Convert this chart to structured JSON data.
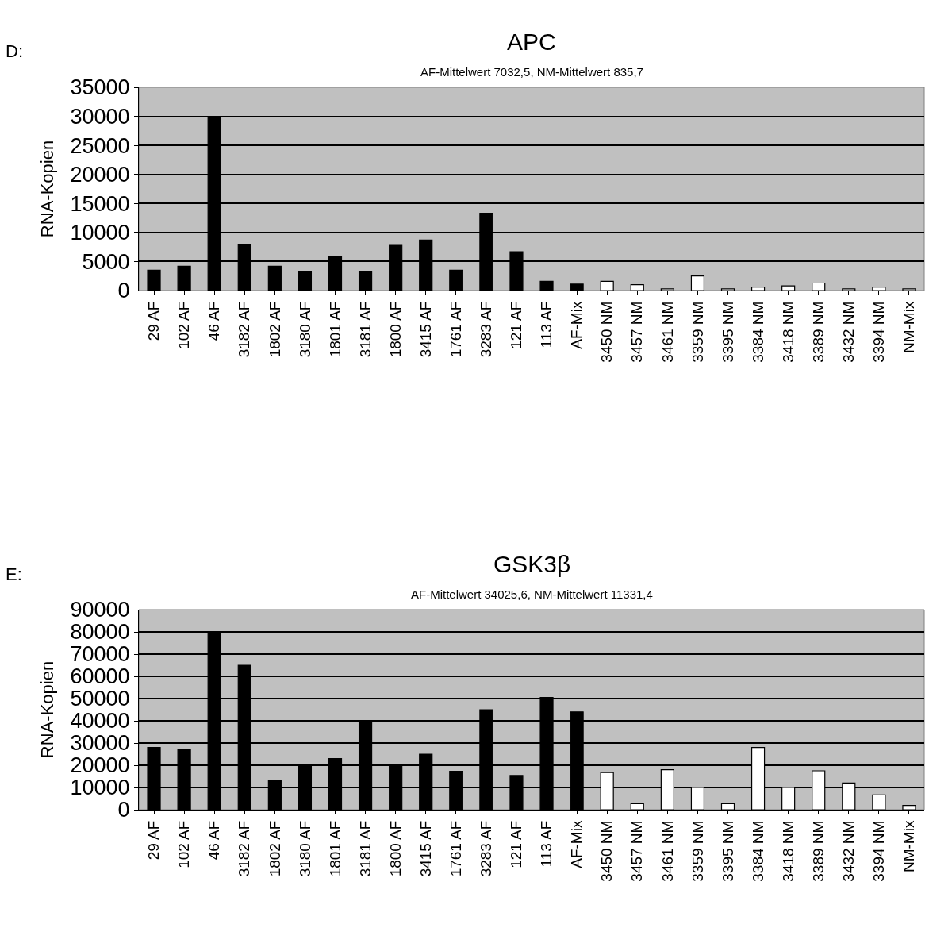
{
  "chart_data": [
    {
      "type": "bar",
      "title": "APC",
      "subtitle": "AF-Mittelwert 7032,5, NM-Mittelwert 835,7",
      "ylabel": "RNA-Kopien",
      "annotations": [
        "D:"
      ],
      "categories": [
        "29 AF",
        "102 AF",
        "46 AF",
        "3182 AF",
        "1802 AF",
        "3180 AF",
        "1801 AF",
        "3181 AF",
        "1800 AF",
        "3415 AF",
        "1761 AF",
        "3283 AF",
        "121 AF",
        "113 AF",
        "AF-Mix",
        "3450 NM",
        "3457 NM",
        "3461 NM",
        "3359 NM",
        "3395 NM",
        "3384 NM",
        "3418 NM",
        "3389 NM",
        "3432 NM",
        "3394 NM",
        "NM-Mix"
      ],
      "values": [
        3500,
        4200,
        30000,
        8000,
        4200,
        3300,
        5900,
        3300,
        7900,
        8700,
        3500,
        13300,
        6700,
        1600,
        1100,
        1600,
        1000,
        300,
        2500,
        300,
        600,
        800,
        1300,
        300,
        600,
        300
      ],
      "colors": [
        "#000000",
        "#000000",
        "#000000",
        "#000000",
        "#000000",
        "#000000",
        "#000000",
        "#000000",
        "#000000",
        "#000000",
        "#000000",
        "#000000",
        "#000000",
        "#000000",
        "#000000",
        "#ffffff",
        "#ffffff",
        "#ffffff",
        "#ffffff",
        "#ffffff",
        "#ffffff",
        "#ffffff",
        "#ffffff",
        "#ffffff",
        "#ffffff",
        "#ffffff"
      ],
      "ylim": [
        0,
        35000
      ],
      "yticks": [
        0,
        5000,
        10000,
        15000,
        20000,
        25000,
        30000,
        35000
      ],
      "grid": "y"
    },
    {
      "type": "bar",
      "title": "GSK3β",
      "subtitle": "AF-Mittelwert 34025,6, NM-Mittelwert 11331,4",
      "ylabel": "RNA-Kopien",
      "annotations": [
        "E:"
      ],
      "categories": [
        "29 AF",
        "102 AF",
        "46 AF",
        "3182 AF",
        "1802 AF",
        "3180 AF",
        "1801 AF",
        "3181 AF",
        "1800 AF",
        "3415 AF",
        "1761 AF",
        "3283 AF",
        "121 AF",
        "113 AF",
        "AF-Mix",
        "3450 NM",
        "3457 NM",
        "3461 NM",
        "3359 NM",
        "3395 NM",
        "3384 NM",
        "3418 NM",
        "3389 NM",
        "3432 NM",
        "3394 NM",
        "NM-Mix"
      ],
      "values": [
        28000,
        27000,
        80000,
        65000,
        13000,
        20000,
        23000,
        40000,
        20000,
        25000,
        17300,
        45000,
        15400,
        50500,
        44000,
        16700,
        2700,
        18000,
        10000,
        2700,
        28000,
        10000,
        17500,
        12000,
        6700,
        1900
      ],
      "colors": [
        "#000000",
        "#000000",
        "#000000",
        "#000000",
        "#000000",
        "#000000",
        "#000000",
        "#000000",
        "#000000",
        "#000000",
        "#000000",
        "#000000",
        "#000000",
        "#000000",
        "#000000",
        "#ffffff",
        "#ffffff",
        "#ffffff",
        "#ffffff",
        "#ffffff",
        "#ffffff",
        "#ffffff",
        "#ffffff",
        "#ffffff",
        "#ffffff",
        "#ffffff"
      ],
      "ylim": [
        0,
        90000
      ],
      "yticks": [
        0,
        10000,
        20000,
        30000,
        40000,
        50000,
        60000,
        70000,
        80000,
        90000
      ],
      "grid": "y"
    }
  ]
}
